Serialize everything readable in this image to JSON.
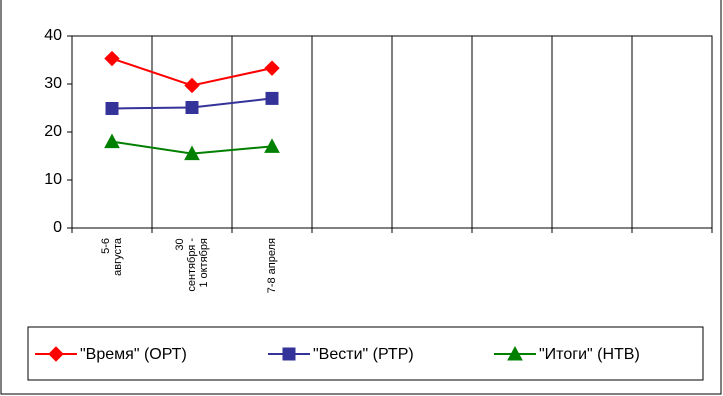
{
  "chart_data": {
    "type": "line",
    "categories": [
      "5-6\nавгуста",
      "30\nсентября -\n1 октября",
      "7-8 апреля",
      null,
      null,
      null,
      null,
      null
    ],
    "series": [
      {
        "name": "\"Время\" (ОРТ)",
        "color": "#ff0000",
        "marker": "diamond",
        "values": [
          35.3,
          29.7,
          33.3,
          null,
          null,
          null,
          null,
          null
        ]
      },
      {
        "name": "\"Вести\" (РТР)",
        "color": "#333399",
        "marker": "square",
        "values": [
          24.9,
          25.1,
          27,
          null,
          null,
          null,
          null,
          null
        ]
      },
      {
        "name": "\"Итоги\" (НТВ)",
        "color": "#008000",
        "marker": "triangle",
        "values": [
          18,
          15.5,
          17,
          null,
          null,
          null,
          null,
          null
        ]
      }
    ],
    "ylim": [
      0,
      40
    ],
    "yticks": [
      0,
      10,
      20,
      30,
      40
    ],
    "grid": "x",
    "legend": "bottom"
  }
}
